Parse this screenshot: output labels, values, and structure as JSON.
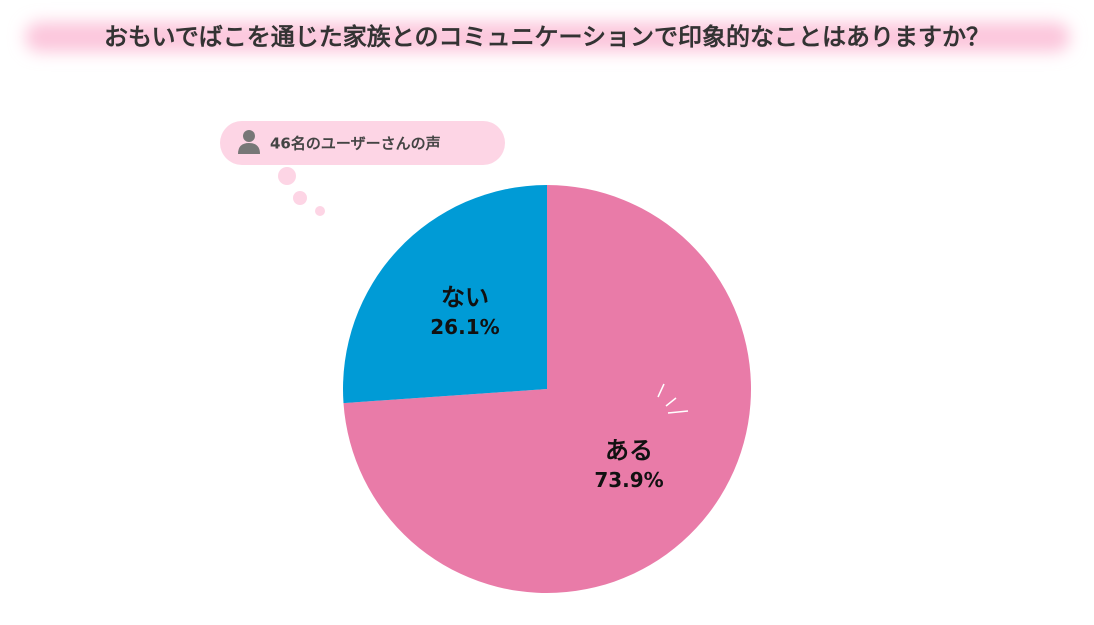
{
  "chart_data": {
    "type": "pie",
    "title": "おもいでばこを通じた家族とのコミュニケーションで印象的なことはありますか？",
    "note": "46名のユーザーさんの声",
    "categories": [
      "ある",
      "ない"
    ],
    "values": [
      73.9,
      26.1
    ],
    "value_labels": [
      "73.9%",
      "26.1%"
    ],
    "colors": [
      "#e97ba8",
      "#009bd6"
    ]
  }
}
